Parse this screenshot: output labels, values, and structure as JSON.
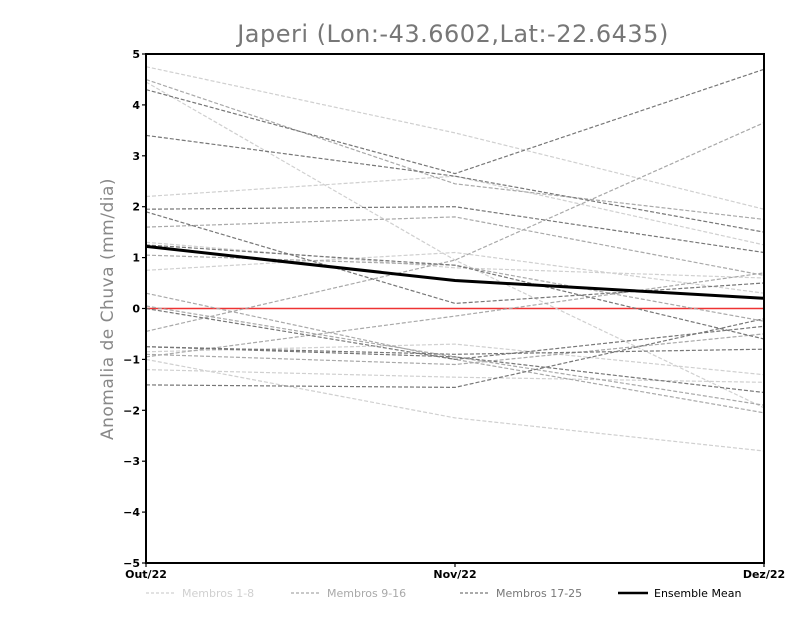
{
  "chart_data": {
    "type": "line",
    "title": "Japeri (Lon:-43.6602,Lat:-22.6435)",
    "xlabel": "",
    "ylabel": "Anomalia de Chuva (mm/dia)",
    "categories": [
      "Out/22",
      "Nov/22",
      "Dez/22"
    ],
    "ylim": [
      -5,
      5
    ],
    "yticks": [
      -5,
      -4,
      -3,
      -2,
      -1,
      0,
      1,
      2,
      3,
      4,
      5
    ],
    "grid": false,
    "legend_position": "bottom",
    "zero_line_color": "#ee3333",
    "groups": [
      {
        "name": "Membros 1-8",
        "color": "#d0d0d0"
      },
      {
        "name": "Membros 9-16",
        "color": "#a9a9a9"
      },
      {
        "name": "Membros 17-25",
        "color": "#777777"
      },
      {
        "name": "Ensemble Mean",
        "color": "#000000"
      }
    ],
    "series": [
      {
        "group": 0,
        "values": [
          4.75,
          3.45,
          1.95
        ]
      },
      {
        "group": 0,
        "values": [
          4.45,
          0.95,
          -1.95
        ]
      },
      {
        "group": 0,
        "values": [
          2.2,
          2.6,
          1.25
        ]
      },
      {
        "group": 0,
        "values": [
          1.3,
          0.8,
          0.6
        ]
      },
      {
        "group": 0,
        "values": [
          0.75,
          1.1,
          0.3
        ]
      },
      {
        "group": 0,
        "values": [
          -0.85,
          -0.7,
          -1.3
        ]
      },
      {
        "group": 0,
        "values": [
          -1.0,
          -2.15,
          -2.8
        ]
      },
      {
        "group": 0,
        "values": [
          -1.2,
          -1.35,
          -1.45
        ]
      },
      {
        "group": 1,
        "values": [
          4.5,
          2.45,
          1.75
        ]
      },
      {
        "group": 1,
        "values": [
          1.6,
          1.8,
          0.65
        ]
      },
      {
        "group": 1,
        "values": [
          1.05,
          0.85,
          -0.25
        ]
      },
      {
        "group": 1,
        "values": [
          -0.45,
          0.95,
          3.65
        ]
      },
      {
        "group": 1,
        "values": [
          0.05,
          -0.95,
          -1.9
        ]
      },
      {
        "group": 1,
        "values": [
          -0.9,
          -1.1,
          -0.5
        ]
      },
      {
        "group": 1,
        "values": [
          -0.95,
          -0.15,
          0.7
        ]
      },
      {
        "group": 1,
        "values": [
          0.3,
          -1.0,
          -2.05
        ]
      },
      {
        "group": 2,
        "values": [
          4.3,
          2.65,
          4.7
        ]
      },
      {
        "group": 2,
        "values": [
          3.4,
          2.6,
          1.5
        ]
      },
      {
        "group": 2,
        "values": [
          1.95,
          2.0,
          1.1
        ]
      },
      {
        "group": 2,
        "values": [
          1.9,
          0.1,
          0.5
        ]
      },
      {
        "group": 2,
        "values": [
          1.25,
          0.85,
          -0.6
        ]
      },
      {
        "group": 2,
        "values": [
          0.0,
          -1.0,
          -0.35
        ]
      },
      {
        "group": 2,
        "values": [
          -0.75,
          -0.9,
          -0.8
        ]
      },
      {
        "group": 2,
        "values": [
          -0.75,
          -0.95,
          -1.65
        ]
      },
      {
        "group": 2,
        "values": [
          -1.5,
          -1.55,
          -0.2
        ]
      },
      {
        "group": 3,
        "values": [
          1.22,
          0.55,
          0.2
        ]
      }
    ]
  }
}
